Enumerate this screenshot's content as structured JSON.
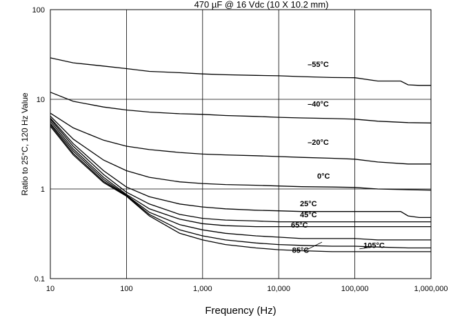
{
  "chart_data": {
    "type": "line",
    "title": "470 µF @ 16 Vdc (10 X 10.2  mm)",
    "xlabel": "Frequency (Hz)",
    "ylabel": "Ratio to 25°C, 120 Hz Value",
    "xscale": "log",
    "yscale": "log",
    "xlim": [
      10,
      1000000
    ],
    "ylim": [
      0.1,
      100
    ],
    "grid": true,
    "legend": "none",
    "x_ticks": [
      10,
      100,
      1000,
      10000,
      100000,
      1000000
    ],
    "x_tick_labels": [
      "10",
      "100",
      "1,000",
      "10,000",
      "100,000",
      "1,000,000"
    ],
    "y_ticks": [
      0.1,
      1,
      10,
      100
    ],
    "y_tick_labels": [
      "0.1",
      "1",
      "10",
      "100"
    ],
    "series": [
      {
        "name": "–55°C",
        "points": [
          [
            10,
            29
          ],
          [
            20,
            25.5
          ],
          [
            50,
            23.5
          ],
          [
            100,
            22
          ],
          [
            200,
            20.5
          ],
          [
            500,
            19.8
          ],
          [
            1000,
            19.2
          ],
          [
            2000,
            18.8
          ],
          [
            5000,
            18.5
          ],
          [
            10000,
            18.3
          ],
          [
            20000,
            17.9
          ],
          [
            50000,
            17.5
          ],
          [
            100000,
            17.4
          ],
          [
            200000,
            16
          ],
          [
            400000,
            16
          ],
          [
            500000,
            14.5
          ],
          [
            700000,
            14.3
          ],
          [
            1000000,
            14.3
          ]
        ]
      },
      {
        "name": "–40°C",
        "points": [
          [
            10,
            12
          ],
          [
            20,
            9.5
          ],
          [
            50,
            8.2
          ],
          [
            100,
            7.6
          ],
          [
            200,
            7.2
          ],
          [
            500,
            6.9
          ],
          [
            1000,
            6.8
          ],
          [
            2000,
            6.6
          ],
          [
            5000,
            6.45
          ],
          [
            10000,
            6.3
          ],
          [
            20000,
            6.2
          ],
          [
            50000,
            6.1
          ],
          [
            100000,
            6.0
          ],
          [
            200000,
            5.7
          ],
          [
            500000,
            5.5
          ],
          [
            1000000,
            5.45
          ]
        ]
      },
      {
        "name": "–20°C",
        "points": [
          [
            10,
            7
          ],
          [
            20,
            4.8
          ],
          [
            50,
            3.5
          ],
          [
            100,
            3.0
          ],
          [
            200,
            2.75
          ],
          [
            500,
            2.55
          ],
          [
            1000,
            2.45
          ],
          [
            2000,
            2.4
          ],
          [
            5000,
            2.35
          ],
          [
            10000,
            2.3
          ],
          [
            20000,
            2.25
          ],
          [
            50000,
            2.2
          ],
          [
            100000,
            2.15
          ],
          [
            200000,
            2.0
          ],
          [
            500000,
            1.9
          ],
          [
            1000000,
            1.9
          ]
        ]
      },
      {
        "name": "0°C",
        "points": [
          [
            10,
            6.5
          ],
          [
            20,
            3.6
          ],
          [
            50,
            2.1
          ],
          [
            100,
            1.6
          ],
          [
            200,
            1.35
          ],
          [
            500,
            1.2
          ],
          [
            1000,
            1.15
          ],
          [
            2000,
            1.12
          ],
          [
            5000,
            1.1
          ],
          [
            10000,
            1.08
          ],
          [
            20000,
            1.06
          ],
          [
            50000,
            1.05
          ],
          [
            100000,
            1.04
          ],
          [
            200000,
            1.0
          ],
          [
            500000,
            0.98
          ],
          [
            1000000,
            0.97
          ]
        ]
      },
      {
        "name": "25°C",
        "points": [
          [
            10,
            6.2
          ],
          [
            20,
            3.2
          ],
          [
            50,
            1.6
          ],
          [
            100,
            1.05
          ],
          [
            200,
            0.82
          ],
          [
            500,
            0.68
          ],
          [
            1000,
            0.63
          ],
          [
            2000,
            0.6
          ],
          [
            5000,
            0.58
          ],
          [
            10000,
            0.57
          ],
          [
            20000,
            0.56
          ],
          [
            50000,
            0.56
          ],
          [
            100000,
            0.56
          ],
          [
            200000,
            0.56
          ],
          [
            400000,
            0.56
          ],
          [
            500000,
            0.5
          ],
          [
            700000,
            0.48
          ],
          [
            1000000,
            0.48
          ]
        ]
      },
      {
        "name": "45°C",
        "points": [
          [
            10,
            6.0
          ],
          [
            20,
            3.0
          ],
          [
            50,
            1.45
          ],
          [
            100,
            0.92
          ],
          [
            200,
            0.68
          ],
          [
            500,
            0.52
          ],
          [
            1000,
            0.47
          ],
          [
            2000,
            0.45
          ],
          [
            5000,
            0.44
          ],
          [
            10000,
            0.43
          ],
          [
            20000,
            0.43
          ],
          [
            50000,
            0.43
          ],
          [
            100000,
            0.43
          ],
          [
            200000,
            0.43
          ],
          [
            500000,
            0.43
          ],
          [
            1000000,
            0.43
          ]
        ]
      },
      {
        "name": "65°C",
        "points": [
          [
            10,
            5.7
          ],
          [
            20,
            2.8
          ],
          [
            50,
            1.35
          ],
          [
            100,
            0.87
          ],
          [
            200,
            0.6
          ],
          [
            500,
            0.46
          ],
          [
            1000,
            0.41
          ],
          [
            2000,
            0.39
          ],
          [
            5000,
            0.38
          ],
          [
            10000,
            0.38
          ],
          [
            20000,
            0.38
          ],
          [
            50000,
            0.38
          ],
          [
            100000,
            0.38
          ],
          [
            1000000,
            0.38
          ]
        ]
      },
      {
        "name": "85°C",
        "points": [
          [
            10,
            5.4
          ],
          [
            20,
            2.65
          ],
          [
            50,
            1.28
          ],
          [
            100,
            0.85
          ],
          [
            200,
            0.55
          ],
          [
            500,
            0.4
          ],
          [
            1000,
            0.35
          ],
          [
            2000,
            0.32
          ],
          [
            5000,
            0.3
          ],
          [
            10000,
            0.29
          ],
          [
            20000,
            0.28
          ],
          [
            50000,
            0.28
          ],
          [
            100000,
            0.28
          ],
          [
            200000,
            0.27
          ],
          [
            500000,
            0.27
          ],
          [
            1000000,
            0.27
          ]
        ]
      },
      {
        "name": "105°C",
        "points": [
          [
            10,
            5.2
          ],
          [
            20,
            2.5
          ],
          [
            50,
            1.22
          ],
          [
            100,
            0.84
          ],
          [
            200,
            0.52
          ],
          [
            500,
            0.35
          ],
          [
            1000,
            0.3
          ],
          [
            2000,
            0.27
          ],
          [
            5000,
            0.25
          ],
          [
            10000,
            0.24
          ],
          [
            20000,
            0.235
          ],
          [
            50000,
            0.23
          ],
          [
            100000,
            0.23
          ],
          [
            200000,
            0.225
          ],
          [
            500000,
            0.22
          ],
          [
            1000000,
            0.22
          ]
        ]
      },
      {
        "name": "",
        "points": [
          [
            10,
            5.0
          ],
          [
            20,
            2.4
          ],
          [
            50,
            1.18
          ],
          [
            100,
            0.83
          ],
          [
            200,
            0.5
          ],
          [
            500,
            0.32
          ],
          [
            1000,
            0.27
          ],
          [
            2000,
            0.24
          ],
          [
            5000,
            0.22
          ],
          [
            10000,
            0.21
          ],
          [
            20000,
            0.205
          ],
          [
            50000,
            0.2
          ],
          [
            100000,
            0.2
          ],
          [
            1000000,
            0.2
          ]
        ]
      }
    ],
    "labels": [
      {
        "text": "–55°C",
        "x": 24000,
        "y": 23
      },
      {
        "text": "–40°C",
        "x": 24000,
        "y": 8.3
      },
      {
        "text": "–20°C",
        "x": 24000,
        "y": 3.1
      },
      {
        "text": "0°C",
        "x": 32000,
        "y": 1.3
      },
      {
        "text": "25°C",
        "x": 19000,
        "y": 0.64
      },
      {
        "text": "45°C",
        "x": 19000,
        "y": 0.485
      },
      {
        "text": "65°C",
        "x": 14500,
        "y": 0.37
      },
      {
        "text": "85°C",
        "x": 15000,
        "y": 0.195
      },
      {
        "text": "105°C",
        "x": 130000,
        "y": 0.22
      }
    ],
    "callouts": [
      {
        "from": [
          22000,
          0.205
        ],
        "to": [
          37000,
          0.255
        ]
      },
      {
        "from": [
          170000,
          0.225
        ],
        "to": [
          115000,
          0.215
        ]
      }
    ]
  }
}
